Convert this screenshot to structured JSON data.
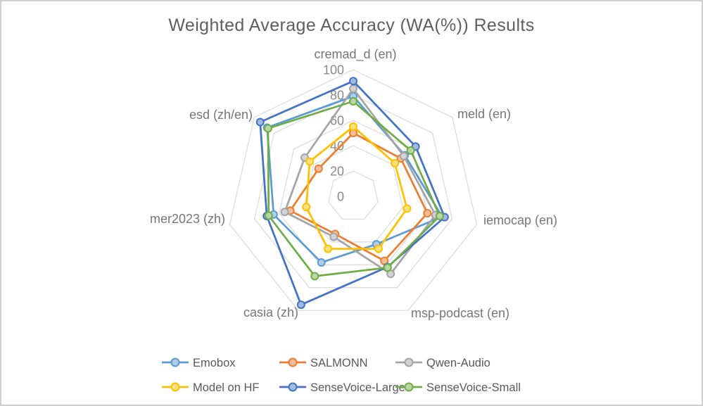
{
  "title": "Weighted Average Accuracy (WA(%)) Results",
  "chart_data": {
    "type": "radar",
    "title": "Weighted Average Accuracy (WA(%)) Results",
    "categories": [
      "cremad_d (en)",
      "meld (en)",
      "iemocap (en)",
      "msp-podcast (en)",
      "casia (zh)",
      "mer2023 (zh)",
      "esd  (zh/en)"
    ],
    "series": [
      {
        "name": "Emobox",
        "color": "#5B9BD5",
        "values": [
          79,
          52,
          72,
          42,
          58,
          64.5,
          87
        ]
      },
      {
        "name": "SALMONN",
        "color": "#ED7D31",
        "values": [
          50,
          48,
          60,
          56.5,
          33,
          51,
          35
        ]
      },
      {
        "name": "Qwen-Audio",
        "color": "#A5A5A5",
        "values": [
          85,
          51,
          66.5,
          68,
          35.5,
          55.5,
          49
        ]
      },
      {
        "name": "Model on HF",
        "color": "#FFC000",
        "values": [
          55,
          42,
          43.5,
          46,
          46,
          38,
          44
        ]
      },
      {
        "name": "SenseVoice-Large",
        "color": "#4472C4",
        "values": [
          91,
          63,
          74,
          62,
          95,
          70,
          94
        ]
      },
      {
        "name": "SenseVoice-Small",
        "color": "#70AD47",
        "values": [
          75,
          58,
          70,
          62.5,
          70,
          68.5,
          86
        ]
      }
    ],
    "radial_axis": {
      "min": 0,
      "max": 100,
      "tick_interval": 20,
      "tick_labels": [
        "0",
        "20",
        "40",
        "60",
        "80",
        "100"
      ]
    },
    "grid": {
      "rings": 5,
      "color": "#d9d9d9",
      "spokes": false
    },
    "legend_position": "bottom"
  }
}
